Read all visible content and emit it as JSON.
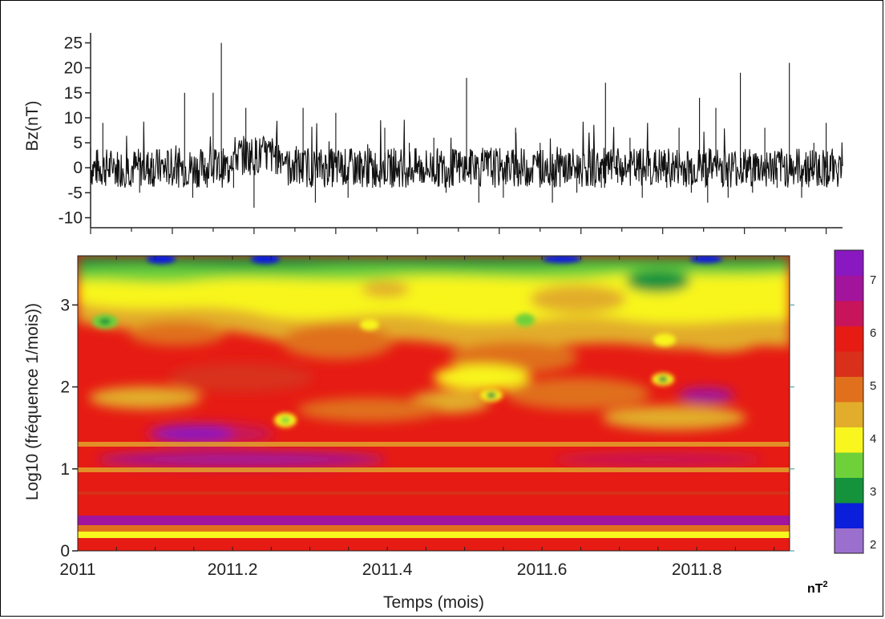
{
  "chart_data": [
    {
      "type": "line",
      "ylabel": "Bz(nT)",
      "ylim": [
        -12,
        27
      ],
      "xlim": [
        2011,
        2011.92
      ],
      "yticks": [
        -10,
        -5,
        0,
        5,
        10,
        15,
        20,
        25
      ],
      "ytick_labels": [
        "-10",
        "-5",
        "0",
        "5",
        "10",
        "15",
        "20",
        "25"
      ],
      "grid": false,
      "series": [
        {
          "x": [
            2011.0,
            2011.015,
            2011.03,
            2011.045,
            2011.06,
            2011.075,
            2011.09,
            2011.105,
            2011.115,
            2011.125,
            2011.14,
            2011.15,
            2011.16,
            2011.175,
            2011.19,
            2011.2,
            2011.215,
            2011.23,
            2011.245,
            2011.26,
            2011.275,
            2011.285,
            2011.3,
            2011.315,
            2011.33,
            2011.345,
            2011.36,
            2011.375,
            2011.39,
            2011.405,
            2011.42,
            2011.435,
            2011.45,
            2011.46,
            2011.475,
            2011.49,
            2011.505,
            2011.52,
            2011.535,
            2011.55,
            2011.565,
            2011.58,
            2011.595,
            2011.61,
            2011.625,
            2011.63,
            2011.645,
            2011.66,
            2011.675,
            2011.69,
            2011.705,
            2011.72,
            2011.735,
            2011.745,
            2011.755,
            2011.765,
            2011.78,
            2011.795,
            2011.81,
            2011.825,
            2011.84,
            2011.855,
            2011.87,
            2011.885,
            2011.9,
            2011.915
          ],
          "y": [
            4,
            9,
            -3,
            2,
            -5,
            3,
            -2,
            1,
            15,
            -6,
            2,
            15,
            25,
            -4,
            12,
            -8,
            5,
            2,
            -3,
            12,
            -7,
            1,
            11,
            -6,
            3,
            -4,
            8,
            -2,
            5,
            -3,
            6,
            -5,
            3,
            18,
            -7,
            4,
            -6,
            8,
            -3,
            5,
            -7,
            2,
            -5,
            7,
            -4,
            17,
            -3,
            6,
            -6,
            3,
            -4,
            8,
            -5,
            14,
            -7,
            12,
            -6,
            19,
            -5,
            8,
            -4,
            21,
            -6,
            5,
            9,
            1
          ]
        }
      ]
    },
    {
      "type": "heatmap",
      "xlabel": "Temps (mois)",
      "ylabel": "Log10 (fréquence 1/mois))",
      "xlim": [
        2011,
        2011.92
      ],
      "ylim": [
        0,
        3.6
      ],
      "xticks": [
        2011,
        2011.2,
        2011.4,
        2011.6,
        2011.8
      ],
      "xtick_labels": [
        "2011",
        "2011.2",
        "2011.4",
        "2011.6",
        "2011.8"
      ],
      "yticks": [
        0,
        1,
        2,
        3
      ],
      "ytick_labels": [
        "0",
        "1",
        "2",
        "3"
      ],
      "colorbar": {
        "levels": [
          2,
          3,
          4,
          5,
          6,
          7
        ],
        "labels": [
          "2",
          "3",
          "4",
          "5",
          "6",
          "7"
        ],
        "unit": "nT",
        "unit_exp": "2",
        "colors": [
          "#9b6fce",
          "#0a1edb",
          "#14923c",
          "#6fd13a",
          "#f8f51f",
          "#e2ad2b",
          "#e0701c",
          "#d8301a",
          "#e61b14",
          "#c8145a",
          "#a2149c",
          "#8a18c0"
        ]
      },
      "background_color": "#e61b14",
      "grid": false
    }
  ],
  "labels": {
    "top_ylabel": "Bz(nT)",
    "bottom_ylabel": "Log10 (fréquence 1/mois))",
    "xlabel": "Temps (mois)",
    "unit": "nT",
    "unit_exp": "2"
  }
}
